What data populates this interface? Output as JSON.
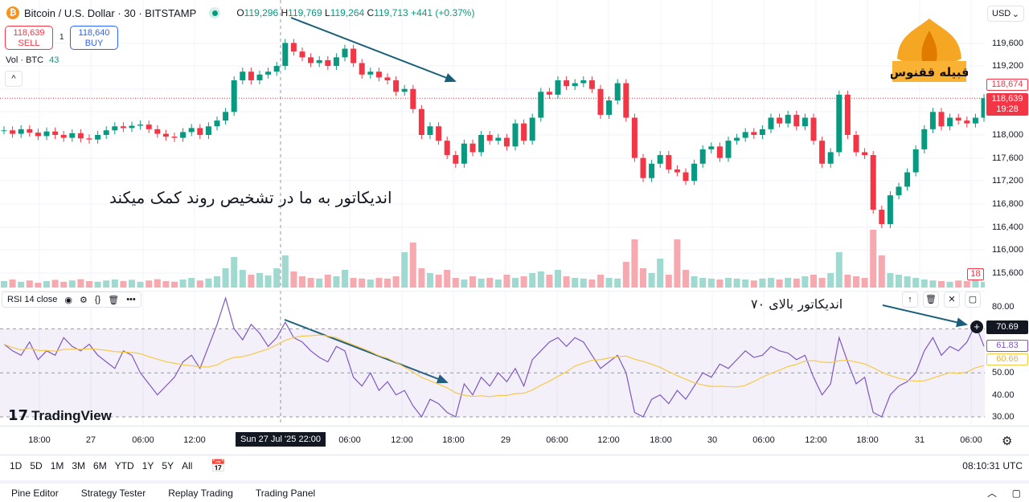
{
  "header": {
    "symbol": "Bitcoin / U.S. Dollar · 30 · BITSTAMP",
    "coin_glyph": "₿",
    "ohlc": {
      "o_label": "O",
      "o": "119,296",
      "h_label": "H",
      "h": "119,769",
      "l_label": "L",
      "l": "119,264",
      "c_label": "C",
      "c": "119,713",
      "change": "+441 (+0.37%)"
    }
  },
  "trade": {
    "sell_price": "118,639",
    "sell_label": "SELL",
    "spread": "1",
    "buy_price": "118,640",
    "buy_label": "BUY"
  },
  "volume_legend": {
    "label": "Vol · BTC",
    "value": "43"
  },
  "currency": "USD",
  "price_axis": {
    "labels": [
      "119,600",
      "119,200",
      "118,000",
      "117,600",
      "117,200",
      "116,800",
      "116,400",
      "116,000",
      "115,600"
    ],
    "tag_high": "118,674",
    "tag_last": "118,639",
    "tag_countdown": "19:28",
    "volume_tag": "18"
  },
  "rsi": {
    "legend": "RSI 14 close",
    "axis_labels": [
      "80.00",
      "50.00",
      "40.00",
      "30.00"
    ],
    "upper_band": "70.69",
    "rsi_value": "61.83",
    "ma_value": "60.66"
  },
  "annotations": {
    "main_text": "اندیکاتور به ما در تشخیص روند کمک میکند",
    "rsi_text": "اندیکاتور بالای ۷۰",
    "logo_text": "قبیله ققنوس"
  },
  "watermark": "TradingView",
  "time_axis": {
    "labels": [
      "18:00",
      "27",
      "06:00",
      "12:00",
      "06:00",
      "12:00",
      "18:00",
      "29",
      "06:00",
      "12:00",
      "18:00",
      "30",
      "06:00",
      "12:00",
      "18:00",
      "31",
      "06:00"
    ],
    "crosshair": "Sun 27 Jul '25   22:00"
  },
  "range_buttons": [
    "1D",
    "5D",
    "1M",
    "3M",
    "6M",
    "YTD",
    "1Y",
    "5Y",
    "All"
  ],
  "clock": "08:10:31 UTC",
  "footer_tabs": [
    "Pine Editor",
    "Strategy Tester",
    "Replay Trading",
    "Trading Panel"
  ],
  "colors": {
    "up": "#089981",
    "down": "#f23645",
    "rsi": "#7e57c2",
    "rsi_ma": "#f7c948",
    "arrow": "#1a5f7a"
  },
  "chart_data": [
    {
      "type": "candlestick",
      "title": "Bitcoin / U.S. Dollar · 30 · BITSTAMP",
      "ylim": [
        115500,
        119800
      ],
      "closes": [
        118080,
        118020,
        118100,
        118040,
        117980,
        118060,
        118000,
        117950,
        118030,
        117940,
        117920,
        118000,
        118080,
        118150,
        118120,
        118160,
        118180,
        118100,
        118020,
        117970,
        117950,
        118050,
        118120,
        118000,
        118150,
        118250,
        118400,
        118950,
        119100,
        118950,
        119050,
        119100,
        119200,
        119600,
        119450,
        119350,
        119250,
        119300,
        119200,
        119350,
        119500,
        119250,
        119050,
        119100,
        119000,
        118950,
        118750,
        118800,
        118450,
        118000,
        118150,
        117900,
        117650,
        117500,
        117850,
        117700,
        118000,
        117900,
        117950,
        117800,
        118200,
        117900,
        118300,
        118750,
        118700,
        118950,
        118850,
        118900,
        118950,
        118800,
        118350,
        118600,
        118900,
        118300,
        117600,
        117250,
        117500,
        117650,
        117400,
        117350,
        117200,
        117500,
        117750,
        117800,
        117600,
        117900,
        117950,
        118050,
        118000,
        118100,
        118300,
        118200,
        118350,
        118150,
        118300,
        117900,
        117500,
        117700,
        118700,
        118000,
        117700,
        117650,
        116700,
        116450,
        116950,
        117100,
        117350,
        117750,
        118100,
        118400,
        118150,
        118300,
        118250,
        118200,
        118300,
        118640
      ],
      "volumes": [
        20,
        25,
        18,
        22,
        15,
        20,
        24,
        18,
        22,
        26,
        20,
        18,
        22,
        25,
        20,
        24,
        18,
        22,
        26,
        20,
        18,
        25,
        30,
        22,
        28,
        35,
        60,
        95,
        55,
        40,
        45,
        38,
        60,
        100,
        50,
        35,
        30,
        28,
        40,
        35,
        55,
        30,
        28,
        25,
        30,
        28,
        35,
        110,
        140,
        60,
        45,
        40,
        55,
        30,
        25,
        35,
        28,
        30,
        25,
        40,
        30,
        35,
        45,
        50,
        40,
        55,
        35,
        30,
        28,
        25,
        40,
        30,
        28,
        80,
        150,
        60,
        45,
        90,
        40,
        150,
        55,
        35,
        30,
        28,
        25,
        30,
        28,
        25,
        22,
        28,
        30,
        25,
        30,
        28,
        35,
        40,
        30,
        45,
        110,
        40,
        35,
        30,
        180,
        100,
        45,
        40,
        35,
        30,
        25,
        22,
        20,
        18,
        22,
        20,
        25,
        18
      ]
    },
    {
      "type": "line",
      "title": "RSI 14 close",
      "ylim": [
        25,
        85
      ],
      "bands": [
        70,
        50,
        30
      ],
      "series": [
        {
          "name": "RSI",
          "values": [
            63,
            60,
            58,
            64,
            56,
            60,
            58,
            66,
            62,
            60,
            63,
            58,
            55,
            52,
            60,
            58,
            50,
            45,
            40,
            44,
            48,
            55,
            58,
            52,
            62,
            72,
            84,
            70,
            65,
            72,
            68,
            62,
            66,
            73,
            66,
            64,
            60,
            57,
            55,
            62,
            60,
            48,
            44,
            50,
            42,
            46,
            40,
            42,
            35,
            30,
            38,
            36,
            32,
            30,
            45,
            40,
            48,
            44,
            50,
            46,
            52,
            44,
            56,
            60,
            64,
            66,
            62,
            66,
            64,
            58,
            52,
            55,
            58,
            50,
            32,
            30,
            38,
            40,
            36,
            42,
            38,
            44,
            50,
            48,
            54,
            52,
            56,
            60,
            57,
            58,
            62,
            60,
            59,
            56,
            58,
            48,
            40,
            45,
            66,
            55,
            45,
            48,
            32,
            30,
            40,
            44,
            46,
            50,
            60,
            66,
            58,
            62,
            60,
            64,
            72,
            62
          ]
        }
      ]
    }
  ]
}
